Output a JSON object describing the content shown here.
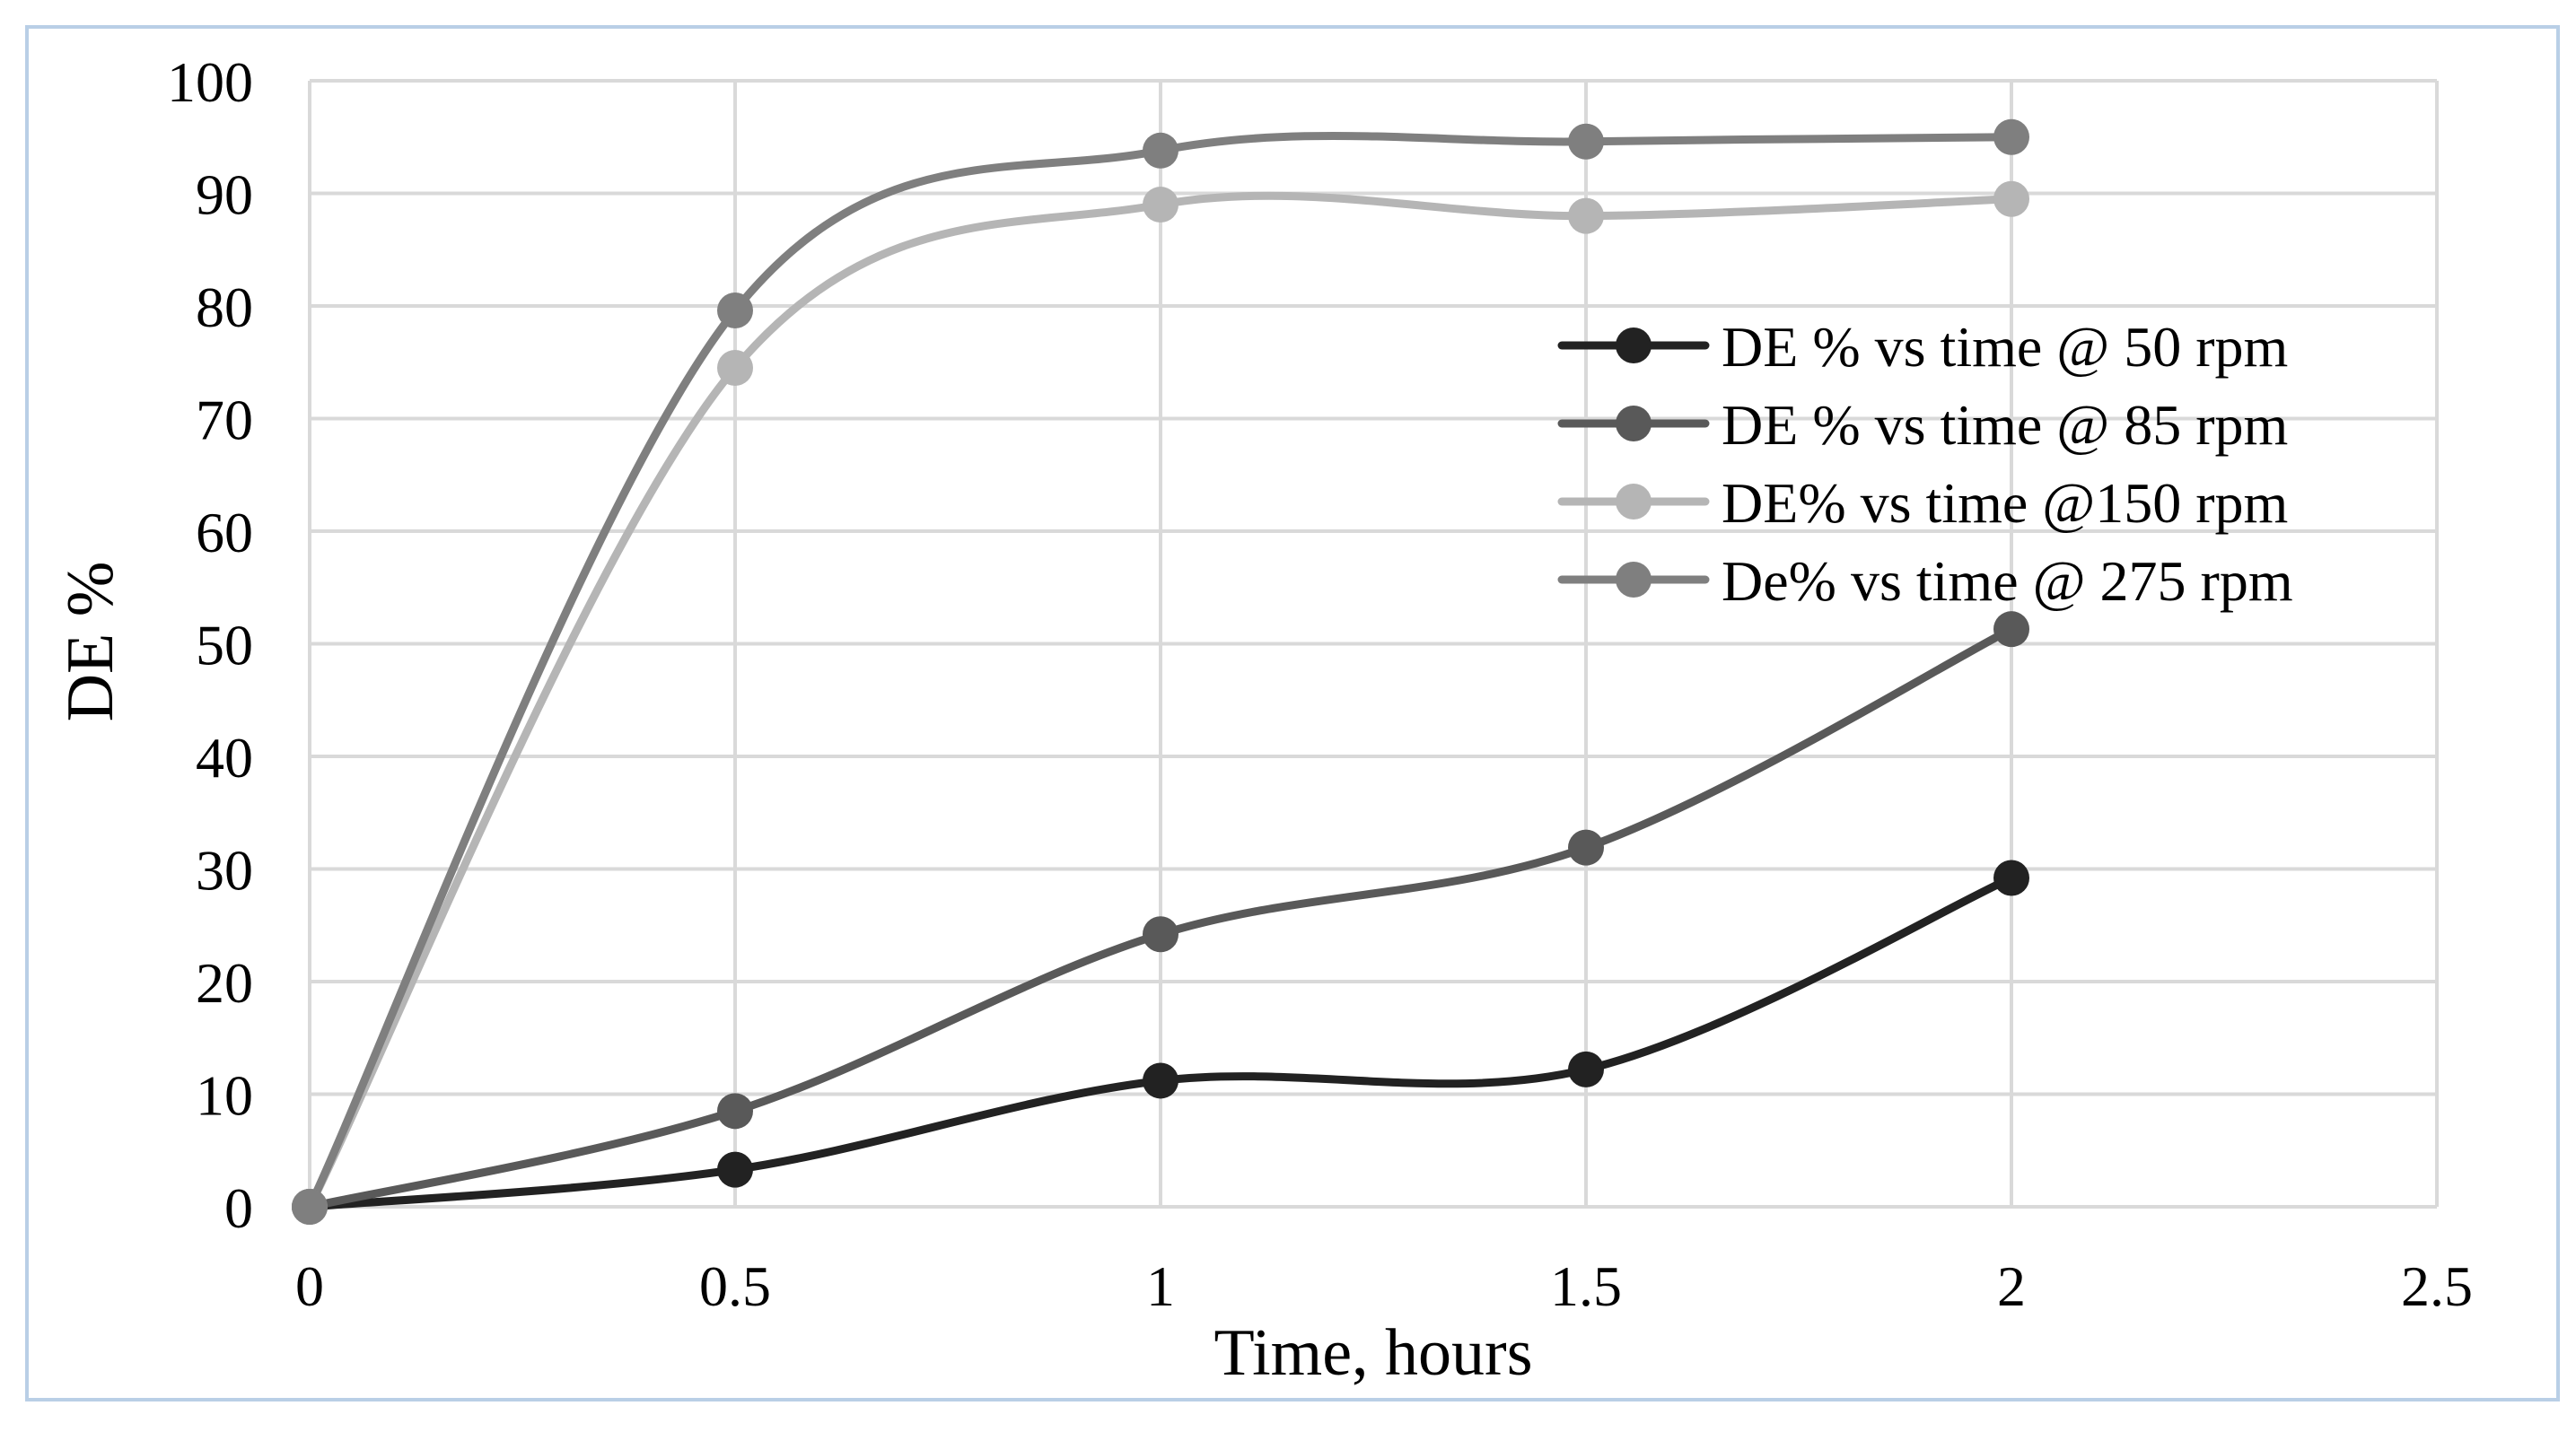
{
  "chart_data": {
    "type": "line",
    "smooth": true,
    "title": "",
    "xlabel": "Time, hours",
    "ylabel": "DE %",
    "xlim": [
      0,
      2.5
    ],
    "ylim": [
      0,
      100
    ],
    "x_ticks": [
      0,
      0.5,
      1,
      1.5,
      2,
      2.5
    ],
    "y_ticks": [
      0,
      10,
      20,
      30,
      40,
      50,
      60,
      70,
      80,
      90,
      100
    ],
    "x_tick_labels": [
      "0",
      "0.5",
      "1",
      "1.5",
      "2",
      "2.5"
    ],
    "y_tick_labels": [
      "0",
      "10",
      "20",
      "30",
      "40",
      "50",
      "60",
      "70",
      "80",
      "90",
      "100"
    ],
    "grid": true,
    "legend_position": "right-upper",
    "x": [
      0,
      0.5,
      1,
      1.5,
      2
    ],
    "series": [
      {
        "name": "DE % vs time @ 50 rpm",
        "color": "#222222",
        "values": [
          0,
          3.3,
          11.2,
          12.2,
          29.2
        ]
      },
      {
        "name": "DE % vs time @ 85 rpm",
        "color": "#595959",
        "values": [
          0,
          8.5,
          24.2,
          31.9,
          51.3
        ]
      },
      {
        "name": "DE% vs time @150 rpm",
        "color": "#b5b5b5",
        "values": [
          0,
          74.5,
          89.0,
          88.0,
          89.5
        ]
      },
      {
        "name": "De% vs time @ 275 rpm",
        "color": "#7f7f7f",
        "values": [
          0,
          79.6,
          93.8,
          94.6,
          95.0
        ]
      }
    ]
  }
}
